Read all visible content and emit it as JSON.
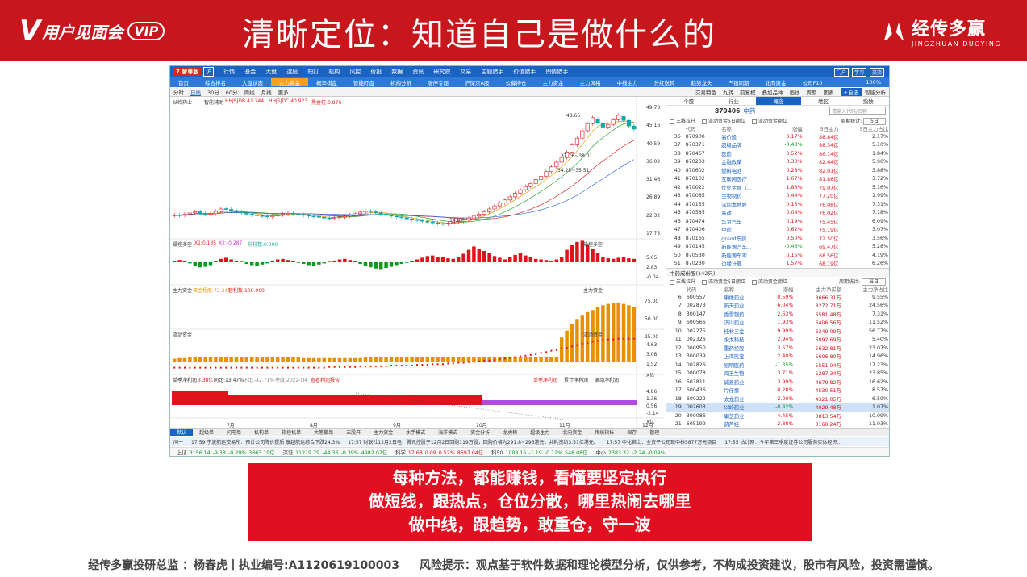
{
  "banner": {
    "vip_logo_v": "V",
    "vip_logo_text": "用户见面会",
    "vip_badge": "VIP",
    "title": "清晰定位：知道自己是做什么的",
    "brand_cn": "经传多赢",
    "brand_en": "JINGZHUAN DUOYING",
    "color": "#c8161d"
  },
  "app": {
    "logo": "7 智尊版",
    "logo_tag": "沪",
    "menus": [
      "行情",
      "基金",
      "大盘",
      "选股",
      "短打",
      "机构",
      "风控",
      "价投",
      "数据",
      "资讯",
      "研究院",
      "交易",
      "主题猎手",
      "价值猎手",
      "舆情猎手"
    ],
    "right_buttons": [
      "门户",
      "学习",
      "交流"
    ],
    "nav": [
      "首页",
      "综合排名",
      "大盘状态",
      "主力资金",
      "概率棋盘",
      "智能盯盘",
      "机构分析",
      "涨停专题",
      "沪深京A股",
      "公募持仓",
      "主力资金",
      "主力风格",
      "中线主力",
      "分红送转",
      "趋势龙头",
      "产销同期",
      "北向资金",
      "公司F10"
    ],
    "nav_active_index": 3,
    "nav_right": "100%",
    "toolbar": [
      "分时",
      "日线",
      "30分",
      "60分",
      "周线",
      "月线",
      "更多"
    ],
    "toolbar_active_index": 1,
    "toolbar_right": [
      "交易特色",
      "九转",
      "前复权",
      "叠加品种",
      "画线",
      "周期",
      "图表"
    ],
    "toolbar_search": "+自选",
    "toolbar_search2": "智能分析",
    "chart": {
      "name_label": "以岭药业",
      "indicator_label": "智能辅助",
      "ma_labels": [
        "HHJSJDB:41.744",
        "HHJSJDC:40.923",
        "黑金柱:0.876"
      ],
      "y_ticks": [
        "49.73",
        "45.16",
        "40.59",
        "36.02",
        "31.46",
        "26.89",
        "22.32",
        "17.75"
      ],
      "annot_high": "48.66",
      "annot_mid1": "37.76~38.01",
      "annot_mid2": "34.25~35.51",
      "annot_low": "14.87",
      "sub1_title": "操控多空",
      "sub1_labels": [
        "X1:0.135",
        "X2:-0.287",
        "彩柱数:0.000"
      ],
      "sub1_ticks": [
        "5.65",
        "2.83",
        "-0.04"
      ],
      "sub2_title": "主力资金",
      "sub2_labels": [
        "资金程度:72.241",
        "营利数:100.000"
      ],
      "sub2_ticks": [
        "75.00",
        "50.00",
        "25.00"
      ],
      "sub3_title": "流动资金",
      "sub3_ticks": [
        "4.63",
        "3.08",
        "1.52",
        "X亿"
      ],
      "sub4_labels": [
        "单季净利润",
        "3.38亿",
        "同比:13.47%",
        "环比:-42.71%",
        "季度:2022-Q4",
        "查看利润报告"
      ],
      "sub4_legend": [
        "单季净利润",
        "累计净利润",
        "滚动净利润"
      ],
      "sub4_ticks": [
        "4.86",
        "1.36",
        "0.56",
        "-2.14",
        "X亿"
      ],
      "x_labels": [
        "7月",
        "8月",
        "9月",
        "10月",
        "11月",
        "12月"
      ]
    },
    "right_panel": {
      "tabs": [
        "个股",
        "行业",
        "概念",
        "地区",
        "指数"
      ],
      "active_tab_index": 2,
      "code": "870406",
      "code_name": "中药",
      "search_placeholder": "请输入代码/名称",
      "options": [
        "三线拉升",
        "流动资金5日翻红",
        "流动资金翻红"
      ],
      "period_label": "周期统计:",
      "period_value": "5日",
      "columns": [
        "",
        "代码",
        "名称",
        "涨幅",
        "5日主力",
        "5日主力占比"
      ],
      "rows": [
        [
          "36",
          "870900",
          "高价股",
          "0.17%",
          "88.84亿",
          "2.17%"
        ],
        [
          "37",
          "870371",
          "超级品牌",
          "-0.43%",
          "88.34亿",
          "5.10%"
        ],
        [
          "38",
          "870467",
          "医药",
          "0.52%",
          "86.14亿",
          "1.84%"
        ],
        [
          "39",
          "870203",
          "金融改革",
          "0.30%",
          "82.64亿",
          "5.90%"
        ],
        [
          "40",
          "870602",
          "燃料电池",
          "0.28%",
          "82.01亿",
          "3.88%"
        ],
        [
          "41",
          "870102",
          "互联网医疗",
          "1.67%",
          "81.88亿",
          "3.72%"
        ],
        [
          "42",
          "870022",
          "优化生育（...",
          "1.83%",
          "79.07亿",
          "5.16%"
        ],
        [
          "43",
          "870085",
          "生物制药",
          "0.44%",
          "77.20亿",
          "1.99%"
        ],
        [
          "44",
          "870155",
          "深圳本地股",
          "0.15%",
          "76.08亿",
          "7.31%"
        ],
        [
          "45",
          "870585",
          "高改",
          "0.04%",
          "76.02亿",
          "7.18%"
        ],
        [
          "46",
          "870474",
          "华为汽车",
          "0.19%",
          "75.45亿",
          "6.09%"
        ],
        [
          "47",
          "870406",
          "中药",
          "0.62%",
          "75.19亿",
          "3.07%"
        ],
        [
          "48",
          "870165",
          "grand东药",
          "0.50%",
          "72.50亿",
          "3.56%"
        ],
        [
          "49",
          "870145",
          "新能源汽车...",
          "-0.43%",
          "69.47亿",
          "5.28%"
        ],
        [
          "50",
          "870530",
          "新能源车零...",
          "0.15%",
          "68.56亿",
          "4.19%"
        ],
        [
          "51",
          "870230",
          "边缘计算",
          "1.57%",
          "68.19亿",
          "6.26%"
        ]
      ],
      "sub_title": "中药成份股(142只)",
      "sub_options": [
        "三线拉升",
        "流动资金5日翻红",
        "流动资金翻红"
      ],
      "sub_period_label": "周期统计:",
      "sub_period_value": "当日",
      "sub_columns": [
        "",
        "代码",
        "名称",
        "涨幅",
        "主力净买额",
        "主力净占比"
      ],
      "sub_rows": [
        [
          "6",
          "600557",
          "康缘药业",
          "0.59%",
          "8666.31万",
          "9.55%"
        ],
        [
          "7",
          "002873",
          "新天药业",
          "6.04%",
          "8272.71万",
          "24.56%"
        ],
        [
          "8",
          "300147",
          "香雪制药",
          "2.63%",
          "6581.48万",
          "7.31%"
        ],
        [
          "9",
          "600566",
          "济川药业",
          "1.93%",
          "6406.56万",
          "11.52%"
        ],
        [
          "10",
          "002275",
          "桂林三金",
          "9.99%",
          "6349.09万",
          "56.77%"
        ],
        [
          "11",
          "002326",
          "永太科技",
          "2.94%",
          "6092.69万",
          "5.40%"
        ],
        [
          "12",
          "000950",
          "重药控股",
          "3.57%",
          "5632.81万",
          "23.07%"
        ],
        [
          "13",
          "300039",
          "上海凯宝",
          "2.40%",
          "5606.80万",
          "14.96%"
        ],
        [
          "14",
          "002826",
          "易明医药",
          "-1.35%",
          "5551.04万",
          "17.23%"
        ],
        [
          "15",
          "000078",
          "海王生物",
          "3.71%",
          "5287.34万",
          "23.85%"
        ],
        [
          "16",
          "603811",
          "诚意药业",
          "3.99%",
          "4679.82万",
          "16.62%"
        ],
        [
          "17",
          "600436",
          "片仔癀",
          "0.28%",
          "4530.51万",
          "8.57%"
        ],
        [
          "18",
          "600222",
          "太龙药业",
          "2.00%",
          "4321.05万",
          "6.59%"
        ],
        [
          "19",
          "002603",
          "以岭药业",
          "-0.82%",
          "4029.48万",
          "1.07%"
        ],
        [
          "20",
          "300086",
          "康芝药业",
          "4.45%",
          "3813.54万",
          "10.09%"
        ],
        [
          "21",
          "605199",
          "葫芦娃",
          "2.88%",
          "3160.24万",
          "11.03%"
        ]
      ],
      "sub_highlight_index": 13
    },
    "bottom_tabs": [
      "默认",
      "超级单",
      "闪电单",
      "机构单",
      "指控机单",
      "大笔撤单",
      "三股开",
      "主力资金",
      "水手模式",
      "海洋模式",
      "资金分析",
      "龙虎榜",
      "超级主力",
      "北向资金",
      "传统指标",
      "保存",
      "管理"
    ],
    "bottom_tab_active": 0,
    "news": [
      "问一",
      "17:59 宁波航运交易所：预计公司降价提质 泰越航运综合下跌24.3%",
      "17:57 财联社12月2日电，腾讯控股于12月2日回购119万股，回购价格为291.8~296港元，共耗资约3.51亿港元。",
      "17:57 中化岩土：全资子公司现中标5877万元项目",
      "17:55 估计网：今年第三季度证券公司服务实体经济..."
    ],
    "status": [
      {
        "name": "上证",
        "val": "3156.14",
        "chg": "-9.33",
        "pct": "-0.29%",
        "amt": "3663.19亿",
        "dir": "dn"
      },
      {
        "name": "深证",
        "val": "11219.79",
        "chg": "-44.36",
        "pct": "-0.39%",
        "amt": "4982.07亿",
        "dir": "dn"
      },
      {
        "name": "科学",
        "val": "17.68",
        "chg": "0.09",
        "pct": "0.52%",
        "amt": "8597.04亿",
        "dir": "up"
      },
      {
        "name": "科50",
        "val": "1008.15",
        "chg": "-1.19",
        "pct": "-0.12%",
        "amt": "548.08亿",
        "dir": "dn"
      },
      {
        "name": "中小",
        "val": "2383.32",
        "chg": "-2.24",
        "pct": "-0.09%",
        "amt": "",
        "dir": "dn"
      }
    ]
  },
  "callout": {
    "lines": [
      "每种方法，都能赚钱，看懂要坚定执行",
      "做短线，跟热点，仓位分散，哪里热闹去哪里",
      "做中线，跟趋势，敢重仓，守一波"
    ],
    "color": "#e01020"
  },
  "footer": {
    "left": "经传多赢投研总监 ：杨春虎丨执业编号:A1120619100003",
    "right": "风险提示：观点基于软件数据和理论模型分析，仅供参考，不构成投资建议，股市有风险，投资需谨慎。"
  },
  "chart_data": {
    "type": "candlestick",
    "name": "以岭药业",
    "x_labels": [
      "7月",
      "8月",
      "9月",
      "10月",
      "11月",
      "12月"
    ],
    "ylim": [
      17.75,
      49.73
    ],
    "y_ticks": [
      49.73,
      45.16,
      40.59,
      36.02,
      31.46,
      26.89,
      22.32,
      17.75
    ],
    "close": [
      22.6,
      22.4,
      22.8,
      23.1,
      23.4,
      23.0,
      22.7,
      22.9,
      23.5,
      24.1,
      24.0,
      23.6,
      23.3,
      23.1,
      22.8,
      22.6,
      22.4,
      22.3,
      22.1,
      22.4,
      22.6,
      22.8,
      23.0,
      22.9,
      22.7,
      22.5,
      22.3,
      22.2,
      22.0,
      21.8,
      21.7,
      21.9,
      22.1,
      22.3,
      22.6,
      22.9,
      23.3,
      23.6,
      23.4,
      23.1,
      22.8,
      22.5,
      22.3,
      22.1,
      21.9,
      21.6,
      21.4,
      21.2,
      21.0,
      20.8,
      20.6,
      20.4,
      20.3,
      20.5,
      20.7,
      21.0,
      21.4,
      21.8,
      22.3,
      22.8,
      23.4,
      24.1,
      24.9,
      25.6,
      26.4,
      27.2,
      28.1,
      29.0,
      29.8,
      30.6,
      31.6,
      32.4,
      33.6,
      34.8,
      36.0,
      37.2,
      38.6,
      40.4,
      42.1,
      44.0,
      45.8,
      47.3,
      46.1,
      44.9,
      45.6,
      46.8,
      47.9,
      46.6,
      45.2,
      44.4
    ],
    "open": [
      22.4,
      22.6,
      22.5,
      22.8,
      23.1,
      23.4,
      23.0,
      22.7,
      22.9,
      23.5,
      24.2,
      24.0,
      23.7,
      23.4,
      23.1,
      22.8,
      22.6,
      22.4,
      22.3,
      22.1,
      22.4,
      22.6,
      22.8,
      23.0,
      22.9,
      22.7,
      22.5,
      22.3,
      22.2,
      22.0,
      21.8,
      21.7,
      21.9,
      22.1,
      22.3,
      22.6,
      22.9,
      23.3,
      23.6,
      23.4,
      23.1,
      22.8,
      22.5,
      22.3,
      22.1,
      21.9,
      21.6,
      21.4,
      21.2,
      21.0,
      20.8,
      20.6,
      20.4,
      20.3,
      20.5,
      20.7,
      21.0,
      21.4,
      21.8,
      22.3,
      22.8,
      23.4,
      24.1,
      24.9,
      25.6,
      26.4,
      27.2,
      28.1,
      29.0,
      29.8,
      30.6,
      31.6,
      32.4,
      33.6,
      34.8,
      36.0,
      37.2,
      38.6,
      40.4,
      42.1,
      44.0,
      45.8,
      47.0,
      46.0,
      44.9,
      45.6,
      46.8,
      47.6,
      46.6,
      45.2
    ],
    "annotations": [
      "48.66",
      "37.76~38.01",
      "34.25~35.51",
      "14.87"
    ],
    "sub_indicator": {
      "bars": [
        0.2,
        0.4,
        0.3,
        -0.2,
        -0.6,
        -0.9,
        -0.8,
        -0.5,
        0.2,
        0.6,
        0.8,
        0.5,
        0.3,
        0.1,
        -0.3,
        -0.5,
        -0.6,
        -0.4,
        -0.2,
        0.3,
        0.5,
        0.6,
        0.4,
        0.2,
        -0.1,
        -0.3,
        -0.5,
        -0.6,
        -0.4,
        -0.2,
        0.1,
        0.3,
        0.5,
        0.6,
        0.4,
        0.2,
        -0.3,
        -0.6,
        -0.9,
        -1.1,
        -1.2,
        -1.0,
        -0.8,
        -0.5,
        -0.3,
        -0.1,
        0.2,
        0.5,
        0.8,
        1.1,
        1.2,
        1.0,
        0.9,
        0.7,
        0.6,
        0.9,
        1.5,
        2.2,
        2.8,
        2.4,
        2.0,
        1.6,
        1.1,
        0.8,
        0.5,
        0.9,
        1.3,
        1.6,
        1.2,
        0.9,
        0.6,
        0.5,
        0.4,
        0.3,
        0.5,
        0.9,
        2.2,
        3.1,
        3.6,
        3.8,
        3.2,
        2.4,
        1.6,
        1.0,
        0.7,
        0.6,
        0.8,
        0.9,
        0.7,
        0.6
      ]
    },
    "main_capital": {
      "ylim": [
        0,
        100
      ],
      "values": [
        4,
        5,
        5,
        6,
        6,
        6,
        7,
        6,
        6,
        6,
        6,
        6,
        6,
        6,
        7,
        7,
        7,
        6,
        6,
        6,
        6,
        6,
        6,
        6,
        6,
        5,
        5,
        5,
        5,
        5,
        5,
        5,
        5,
        5,
        5,
        5,
        5,
        6,
        6,
        6,
        6,
        6,
        6,
        6,
        6,
        6,
        6,
        6,
        6,
        6,
        6,
        6,
        6,
        6,
        6,
        6,
        6,
        6,
        6,
        6,
        6,
        6,
        6,
        6,
        6,
        6,
        6,
        6,
        6,
        6,
        6,
        6,
        6,
        6,
        6,
        35,
        45,
        55,
        62,
        68,
        72,
        75,
        80,
        82,
        84,
        85,
        86,
        84,
        82,
        80
      ]
    },
    "flow_capital": {
      "values": [
        0.5,
        0.5,
        0.5,
        0.5,
        0.5,
        0.5,
        0.5,
        0.5,
        0.5,
        0.5,
        0.5,
        0.5,
        0.5,
        0.5,
        0.5,
        0.5,
        0.5,
        0.5,
        0.5,
        0.5,
        0.5,
        0.5,
        0.5,
        0.5,
        0.5,
        0.5,
        0.5,
        0.5,
        0.5,
        0.5,
        0.6,
        0.6,
        0.6,
        0.6,
        0.6,
        0.6,
        0.7,
        0.7,
        0.7,
        0.7,
        0.7,
        0.7,
        0.8,
        0.8,
        0.8,
        0.8,
        0.8,
        0.9,
        0.9,
        0.9,
        1.0,
        1.0,
        1.0,
        1.1,
        1.1,
        1.2,
        1.2,
        1.3,
        1.3,
        1.4,
        1.5,
        1.5,
        1.6,
        1.7,
        1.8,
        1.9,
        2.0,
        2.1,
        2.2,
        2.3,
        2.4,
        2.6,
        2.7,
        2.9,
        3.0,
        3.2,
        3.3,
        3.5,
        3.7,
        3.9,
        4.0,
        4.2,
        4.3,
        4.4,
        4.5,
        4.5,
        4.6,
        4.6,
        4.6,
        4.6
      ]
    }
  }
}
